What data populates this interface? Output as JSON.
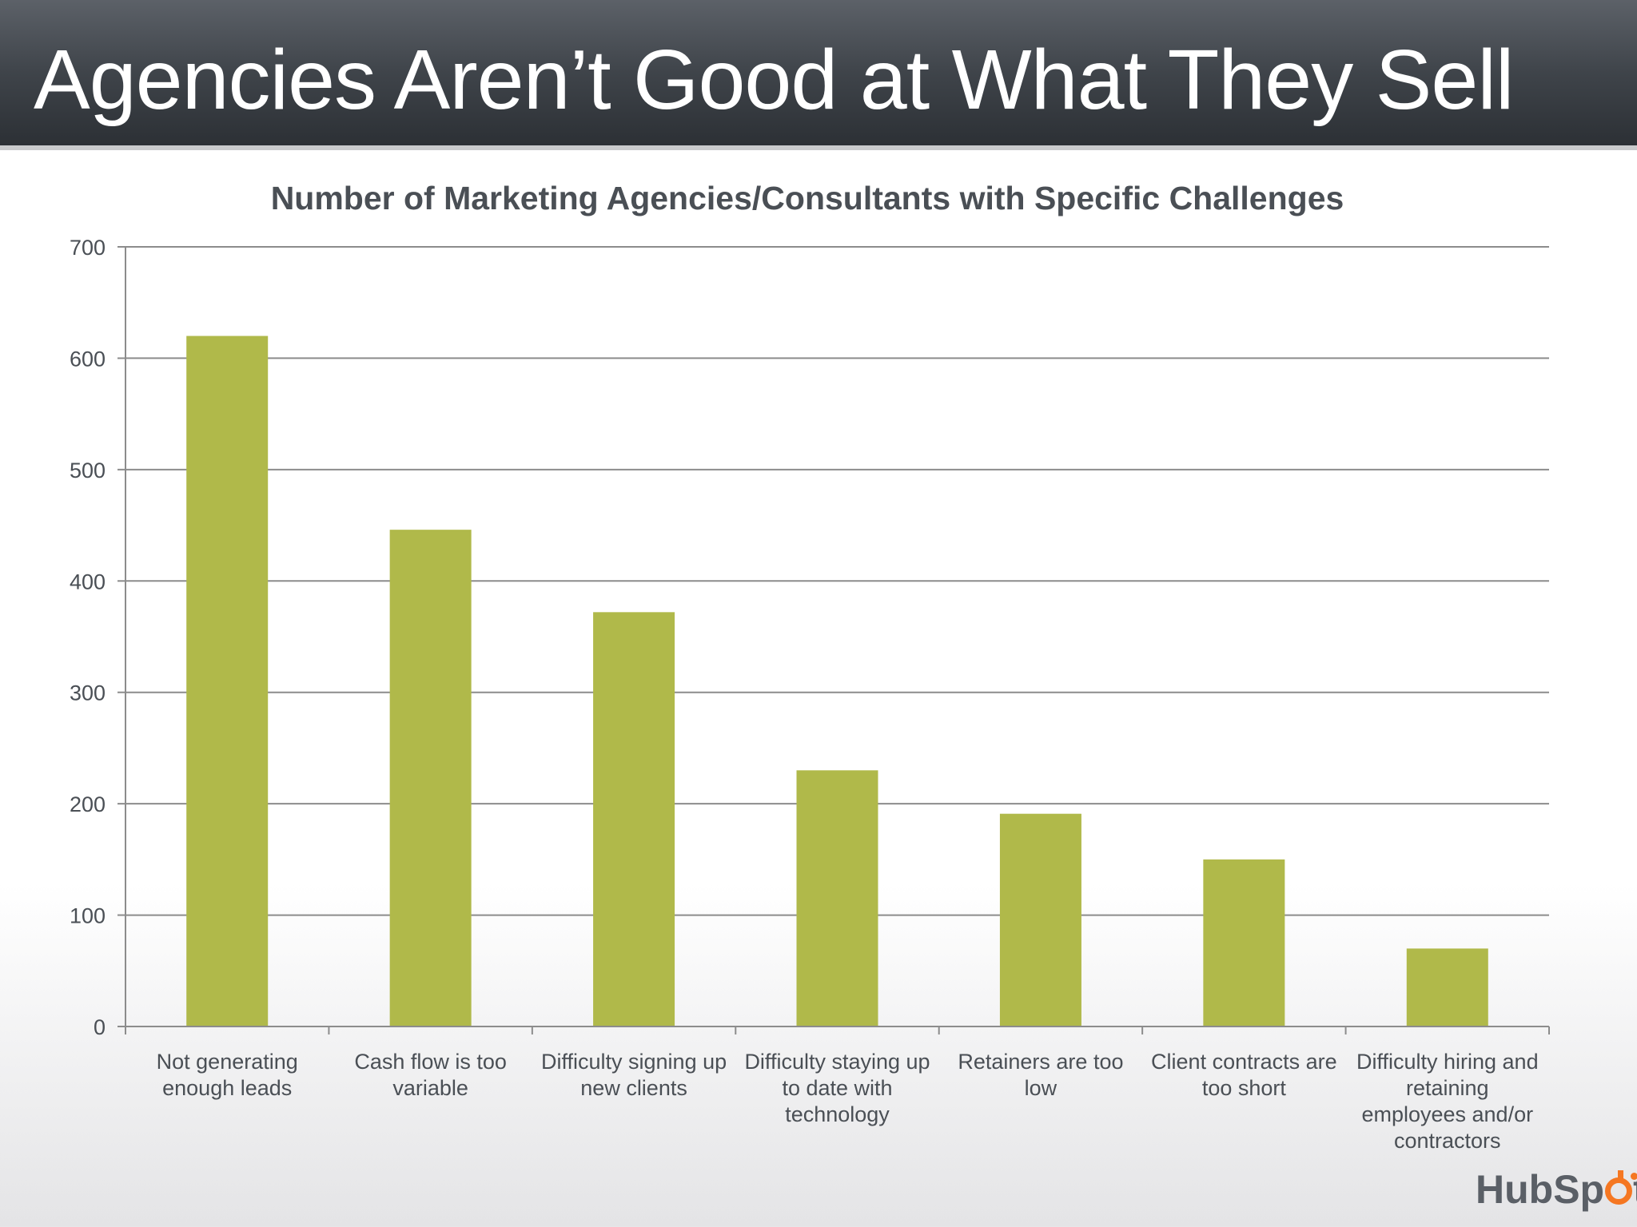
{
  "slide": {
    "title": "Agencies Aren’t Good at What They Sell",
    "logo_text_before": "HubSp",
    "logo_text_after": "t"
  },
  "colors": {
    "bar": "#b0b94a",
    "header": "#3f444a",
    "text": "#4a4f55",
    "grid": "#8c8c8c",
    "logo_accent": "#f57722"
  },
  "chart_data": {
    "type": "bar",
    "title": "Number of Marketing Agencies/Consultants with Specific Challenges",
    "categories": [
      "Not generating enough leads",
      "Cash flow is too variable",
      "Difficulty signing up new clients",
      "Difficulty staying up to date with technology",
      "Retainers are too low",
      "Client contracts are too short",
      "Difficulty hiring and retaining employees and/or contractors"
    ],
    "category_lines": [
      [
        "Not generating",
        "enough leads"
      ],
      [
        "Cash flow is too",
        "variable"
      ],
      [
        "Difficulty signing up",
        "new clients"
      ],
      [
        "Difficulty staying up",
        "to date with",
        "technology"
      ],
      [
        "Retainers are too",
        "low"
      ],
      [
        "Client contracts are",
        "too short"
      ],
      [
        "Difficulty hiring and",
        "retaining",
        "employees and/or",
        "contractors"
      ]
    ],
    "values": [
      620,
      446,
      372,
      230,
      191,
      150,
      70
    ],
    "ylim": [
      0,
      700
    ],
    "yticks": [
      0,
      100,
      200,
      300,
      400,
      500,
      600,
      700
    ],
    "grid": true,
    "legend": "none"
  }
}
